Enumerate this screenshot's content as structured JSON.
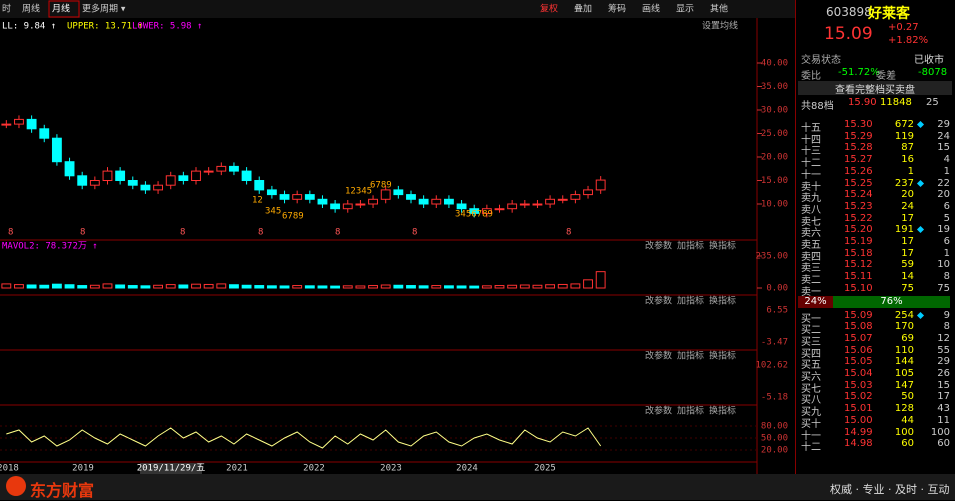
{
  "toolbar": {
    "left": [
      "时",
      "周线",
      "月线",
      "更多周期 ▾"
    ],
    "right": [
      "复权",
      "叠加",
      "筹码",
      "画线",
      "显示",
      "其他"
    ]
  },
  "price_panel": {
    "indicator": [
      "LL: 9.84 ↑",
      "UPPER: 13.71 ↑",
      "LOWER: 5.98 ↑"
    ],
    "setting": "设置均线",
    "ylim": [
      10,
      40
    ],
    "yticks": [
      {
        "value": 40,
        "label": "40.00"
      },
      {
        "value": 35,
        "label": "35.00"
      },
      {
        "value": 30,
        "label": "30.00"
      },
      {
        "value": 25,
        "label": "25.00"
      },
      {
        "value": 20,
        "label": "20.00"
      },
      {
        "value": 15,
        "label": "15.00"
      },
      {
        "value": 10,
        "label": "10.00"
      }
    ],
    "close": [
      27,
      28,
      26,
      24,
      19,
      16,
      14,
      15,
      17,
      15,
      14,
      13,
      14,
      16,
      15,
      17,
      17,
      18,
      17,
      15,
      13,
      12,
      11,
      12,
      11,
      10,
      9,
      10,
      10,
      11,
      13,
      12,
      11,
      10,
      11,
      10,
      9,
      8,
      9,
      9,
      10,
      10,
      10,
      11,
      11,
      12,
      13,
      15.09
    ],
    "annotations": [
      "8",
      "8",
      "8",
      "8",
      "8",
      "8",
      "8",
      "12345",
      "6789",
      "345",
      "6789",
      "12",
      "3456789"
    ]
  },
  "volume_panel": {
    "indicator": "MAVOL2: 78.372万 ↑",
    "ylim": [
      0,
      235
    ],
    "yticks": [
      {
        "value": 235,
        "label": "235.00"
      },
      {
        "value": 0,
        "label": "0.00"
      }
    ],
    "values": [
      30,
      25,
      22,
      20,
      28,
      24,
      18,
      20,
      30,
      22,
      18,
      16,
      20,
      25,
      22,
      28,
      26,
      30,
      24,
      20,
      18,
      16,
      15,
      18,
      16,
      15,
      14,
      16,
      15,
      18,
      22,
      20,
      18,
      16,
      18,
      16,
      15,
      14,
      16,
      18,
      20,
      22,
      20,
      24,
      26,
      30,
      60,
      120
    ]
  },
  "buttons": [
    "改参数",
    "加指标",
    "换指标"
  ],
  "macd_panel": {
    "yticks": [
      {
        "value": 6.55,
        "label": "6.55"
      },
      {
        "value": -3.47,
        "label": "-3.47"
      }
    ]
  },
  "kdj_panel": {
    "yticks": [
      {
        "value": 102.62,
        "label": "102.62"
      },
      {
        "value": -5.18,
        "label": "-5.18"
      }
    ]
  },
  "rsi_panel": {
    "ylim": [
      0,
      100
    ],
    "yticks": [
      {
        "value": 80,
        "label": "80.00"
      },
      {
        "value": 50,
        "label": "50.00"
      },
      {
        "value": 20,
        "label": "20.00"
      }
    ],
    "values": [
      60,
      70,
      40,
      55,
      30,
      45,
      70,
      50,
      35,
      60,
      45,
      30,
      55,
      75,
      50,
      65,
      40,
      55,
      35,
      60,
      45,
      30,
      50,
      65,
      40,
      25,
      55,
      35,
      60,
      45,
      70,
      40,
      30,
      55,
      65,
      40,
      30,
      50,
      60,
      45,
      35,
      70,
      50,
      40,
      65,
      55,
      75,
      30
    ]
  },
  "dates": {
    "labels": [
      "2018",
      "2019",
      "2021",
      "2022",
      "2023",
      "2024",
      "2025"
    ],
    "cursor": "2019/11/29/五"
  },
  "quote": {
    "code": "603898",
    "name": "好莱客",
    "price": "15.09",
    "change": "+0.27",
    "pct": "+1.82%",
    "status_label": "交易状态",
    "status": "已收市",
    "ratio_label": "委比",
    "ratio": "-51.72%",
    "diff_label": "委差",
    "diff": "-8078",
    "full_book": "查看完整档买卖盘",
    "total": [
      "共88档",
      "15.90",
      "11848",
      "25"
    ],
    "sell": [
      [
        "十五",
        "15.30",
        "672",
        "29",
        true
      ],
      [
        "十四",
        "15.29",
        "119",
        "24",
        false
      ],
      [
        "十三",
        "15.28",
        "87",
        "15",
        false
      ],
      [
        "十二",
        "15.27",
        "16",
        "4",
        false
      ],
      [
        "十一",
        "15.26",
        "1",
        "1",
        false
      ],
      [
        "卖十",
        "15.25",
        "237",
        "22",
        true
      ],
      [
        "卖九",
        "15.24",
        "20",
        "20",
        false
      ],
      [
        "卖八",
        "15.23",
        "24",
        "6",
        false
      ],
      [
        "卖七",
        "15.22",
        "17",
        "5",
        false
      ],
      [
        "卖六",
        "15.20",
        "191",
        "19",
        true
      ],
      [
        "卖五",
        "15.19",
        "17",
        "6",
        false
      ],
      [
        "卖四",
        "15.18",
        "17",
        "1",
        false
      ],
      [
        "卖三",
        "15.12",
        "59",
        "10",
        false
      ],
      [
        "卖二",
        "15.11",
        "14",
        "8",
        false
      ],
      [
        "卖一",
        "15.10",
        "75",
        "75",
        false
      ]
    ],
    "balance": [
      "24%",
      "76%"
    ],
    "buy": [
      [
        "买一",
        "15.09",
        "254",
        "9",
        true
      ],
      [
        "买二",
        "15.08",
        "170",
        "8",
        false
      ],
      [
        "买三",
        "15.07",
        "69",
        "12",
        false
      ],
      [
        "买四",
        "15.06",
        "110",
        "55",
        false
      ],
      [
        "买五",
        "15.05",
        "144",
        "29",
        false
      ],
      [
        "买六",
        "15.04",
        "105",
        "26",
        false
      ],
      [
        "买七",
        "15.03",
        "147",
        "15",
        false
      ],
      [
        "买八",
        "15.02",
        "50",
        "17",
        false
      ],
      [
        "买九",
        "15.01",
        "128",
        "43",
        false
      ],
      [
        "买十",
        "15.00",
        "44",
        "11",
        false
      ],
      [
        "十一",
        "14.99",
        "100",
        "100",
        false
      ],
      [
        "十二",
        "14.98",
        "60",
        "60",
        false
      ]
    ]
  },
  "footer": {
    "brand": "东方财富",
    "slogan": "权威 · 专业 · 及时 · 互动"
  }
}
